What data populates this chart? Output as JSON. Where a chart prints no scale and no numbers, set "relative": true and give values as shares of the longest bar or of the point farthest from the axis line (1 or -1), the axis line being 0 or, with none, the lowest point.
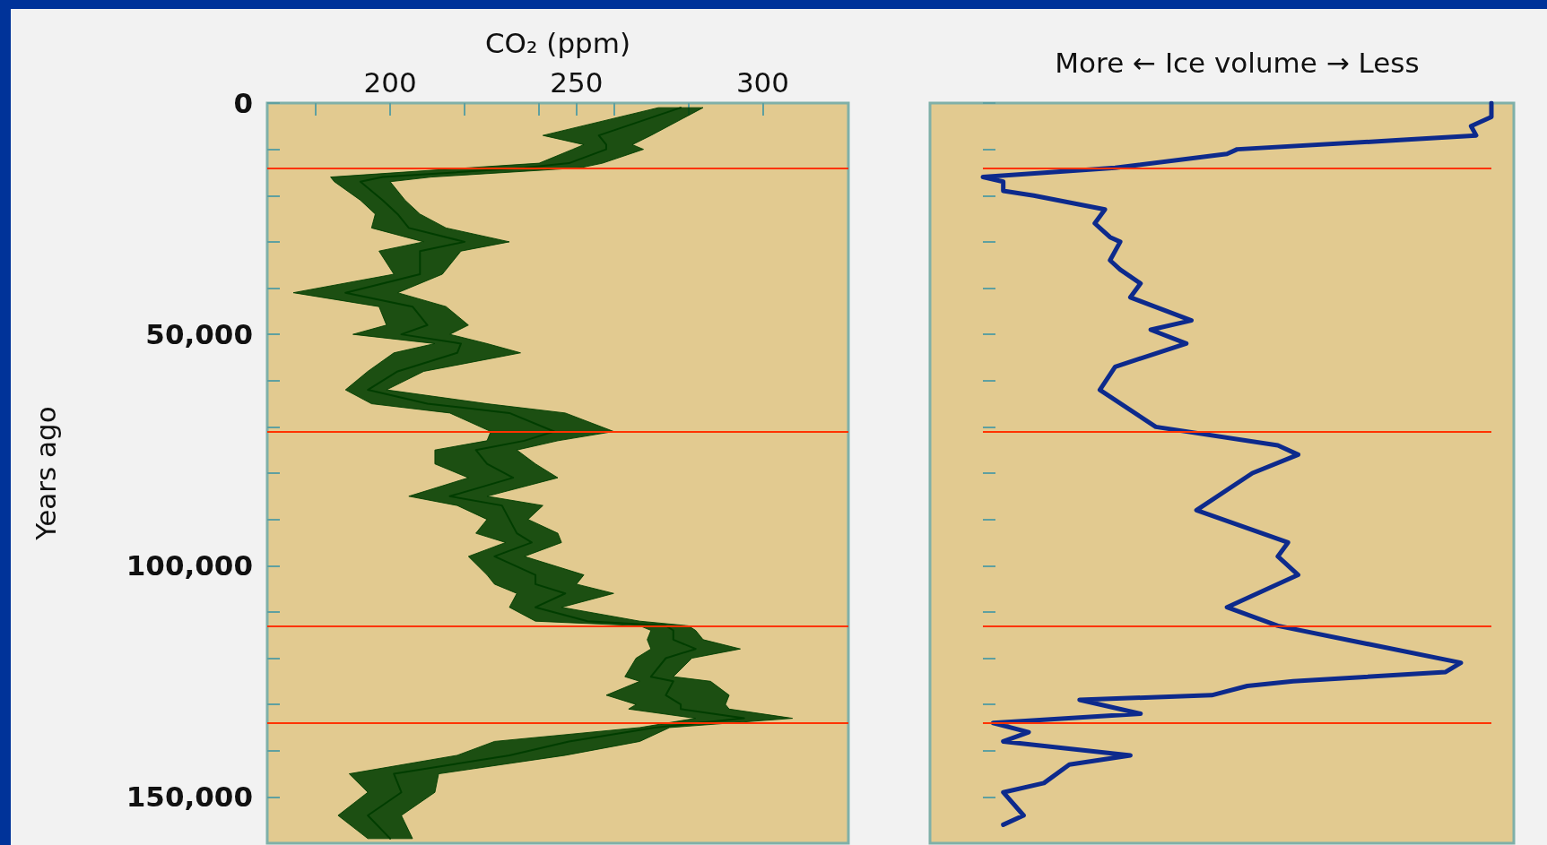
{
  "chart_data": [
    {
      "type": "line",
      "orientation": "horizontal",
      "xlabel": "CO₂ (ppm)",
      "ylabel": "Years ago",
      "xlim": [
        167,
        323
      ],
      "xticks": [
        {
          "value": 180,
          "label": null
        },
        200,
        {
          "value": 220,
          "label": null
        },
        {
          "value": 240,
          "label": null
        },
        250,
        {
          "value": 260,
          "label": null
        },
        {
          "value": 280,
          "label": null
        },
        300
      ],
      "ylim": [
        160000,
        0
      ],
      "yticks": [
        0,
        {
          "value": 10000,
          "label": null
        },
        {
          "value": 20000,
          "label": null
        },
        {
          "value": 30000,
          "label": null
        },
        {
          "value": 40000,
          "label": null
        },
        {
          "value": 50000,
          "label": "50,000"
        },
        {
          "value": 60000,
          "label": null
        },
        {
          "value": 70000,
          "label": null
        },
        {
          "value": 80000,
          "label": null
        },
        {
          "value": 90000,
          "label": null
        },
        {
          "value": 100000,
          "label": "100,000"
        },
        {
          "value": 110000,
          "label": null
        },
        {
          "value": 120000,
          "label": null
        },
        {
          "value": 130000,
          "label": null
        },
        {
          "value": 140000,
          "label": null
        },
        {
          "value": 150000,
          "label": "150,000"
        }
      ],
      "grid": false,
      "marker": "none",
      "line_style": "solid",
      "series": [
        {
          "color": "#003d00",
          "x": [
            1000,
            7000,
            9000,
            10000,
            13000,
            14000,
            16000,
            17000,
            21000,
            24000,
            27000,
            30000,
            32000,
            37000,
            41000,
            44000,
            48000,
            50000,
            52000,
            54000,
            58000,
            62000,
            65000,
            67000,
            71000,
            73000,
            75000,
            78000,
            81000,
            85000,
            87000,
            90000,
            93000,
            95000,
            98000,
            102000,
            104000,
            106000,
            109000,
            112000,
            113000,
            114000,
            116000,
            118000,
            120000,
            124000,
            125000,
            128000,
            130000,
            131000,
            133000,
            135000,
            138000,
            141000,
            145000,
            149000,
            154000,
            159000
          ],
          "values": [
            278,
            256,
            258,
            258,
            248,
            236,
            198,
            192,
            198,
            202,
            205,
            220,
            208,
            208,
            188,
            206,
            210,
            203,
            219,
            218,
            202,
            194,
            210,
            232,
            244,
            236,
            223,
            226,
            233,
            216,
            230,
            232,
            234,
            238,
            228,
            239,
            239,
            247,
            239,
            253,
            274,
            276,
            276,
            282,
            274,
            270,
            276,
            274,
            278,
            278,
            295,
            271,
            248,
            232,
            201,
            203,
            194,
            200
          ],
          "lower": [
            272,
            241,
            252,
            249,
            240,
            221,
            184,
            185,
            192,
            196,
            195,
            209,
            197,
            201,
            174,
            197,
            199,
            190,
            212,
            201,
            194,
            188,
            195,
            216,
            227,
            226,
            212,
            212,
            221,
            205,
            218,
            226,
            223,
            231,
            221,
            226,
            228,
            234,
            232,
            239,
            267,
            270,
            269,
            270,
            266,
            263,
            267,
            258,
            266,
            264,
            282,
            267,
            228,
            218,
            189,
            194,
            186,
            194
          ],
          "upper": [
            284,
            270,
            265,
            268,
            257,
            251,
            211,
            200,
            204,
            208,
            215,
            232,
            219,
            214,
            202,
            215,
            221,
            216,
            226,
            235,
            209,
            199,
            226,
            247,
            260,
            245,
            234,
            239,
            245,
            226,
            241,
            237,
            245,
            246,
            236,
            252,
            250,
            260,
            246,
            267,
            280,
            282,
            284,
            294,
            281,
            276,
            286,
            291,
            290,
            291,
            308,
            275,
            267,
            247,
            213,
            212,
            203,
            206
          ]
        }
      ],
      "ref_lines": [
        {
          "axis": "y",
          "value": 14000,
          "color": "#ff3300"
        },
        {
          "axis": "y",
          "value": 71000,
          "color": "#ff3300"
        },
        {
          "axis": "y",
          "value": 113000,
          "color": "#ff3300"
        },
        {
          "axis": "y",
          "value": 134000,
          "color": "#ff3300"
        }
      ]
    },
    {
      "type": "line",
      "orientation": "horizontal",
      "relative": true,
      "xlabel": "More ← Ice volume → Less",
      "ylim": [
        160000,
        0
      ],
      "yticks": [
        0,
        10000,
        20000,
        30000,
        40000,
        50000,
        60000,
        70000,
        80000,
        90000,
        100000,
        110000,
        120000,
        130000,
        140000,
        150000
      ],
      "tick_labels": false,
      "grid": false,
      "marker": "none",
      "line_style": "solid",
      "series": [
        {
          "color": "#0d2a8c",
          "x": [
            0,
            3000,
            5000,
            7000,
            8000,
            10000,
            11000,
            14000,
            16000,
            17000,
            19000,
            20000,
            23000,
            26000,
            29000,
            30000,
            34000,
            36000,
            39000,
            42000,
            47000,
            49000,
            52000,
            57000,
            62000,
            70000,
            74000,
            76000,
            80000,
            88000,
            95000,
            98000,
            102000,
            109000,
            113000,
            121000,
            123000,
            125000,
            126000,
            128000,
            129000,
            132000,
            134000,
            136000,
            138000,
            141000,
            143000,
            147000,
            149000,
            154000,
            156000
          ],
          "values": [
            1.0,
            1.0,
            0.96,
            0.97,
            0.82,
            0.5,
            0.48,
            0.26,
            0,
            0.04,
            0.04,
            0.1,
            0.24,
            0.22,
            0.25,
            0.27,
            0.25,
            0.27,
            0.31,
            0.29,
            0.41,
            0.33,
            0.4,
            0.26,
            0.23,
            0.34,
            0.58,
            0.62,
            0.53,
            0.42,
            0.6,
            0.58,
            0.62,
            0.48,
            0.58,
            0.94,
            0.91,
            0.61,
            0.52,
            0.45,
            0.19,
            0.31,
            0.02,
            0.09,
            0.04,
            0.29,
            0.17,
            0.12,
            0.04,
            0.08,
            0.04
          ]
        }
      ],
      "ref_lines": [
        {
          "axis": "y",
          "value": 14000,
          "color": "#ff3300"
        },
        {
          "axis": "y",
          "value": 71000,
          "color": "#ff3300"
        },
        {
          "axis": "y",
          "value": 113000,
          "color": "#ff3300"
        },
        {
          "axis": "y",
          "value": 134000,
          "color": "#ff3300"
        }
      ]
    }
  ]
}
